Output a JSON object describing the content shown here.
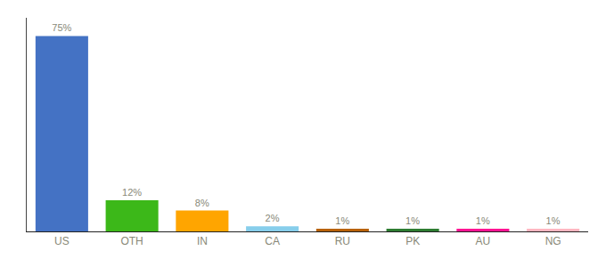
{
  "chart_data": {
    "type": "bar",
    "categories": [
      "US",
      "OTH",
      "IN",
      "CA",
      "RU",
      "PK",
      "AU",
      "NG"
    ],
    "values": [
      75,
      12,
      8,
      2,
      1,
      1,
      1,
      1
    ],
    "value_labels": [
      "75%",
      "12%",
      "8%",
      "2%",
      "1%",
      "1%",
      "1%",
      "1%"
    ],
    "colors": [
      "#4472C4",
      "#3CB819",
      "#FFA500",
      "#87CEEB",
      "#B8620A",
      "#2E7D32",
      "#FF1493",
      "#FFB6C1"
    ],
    "ylim": [
      0,
      82
    ],
    "grid": false,
    "data_labels": true,
    "tick_labels": "x"
  }
}
